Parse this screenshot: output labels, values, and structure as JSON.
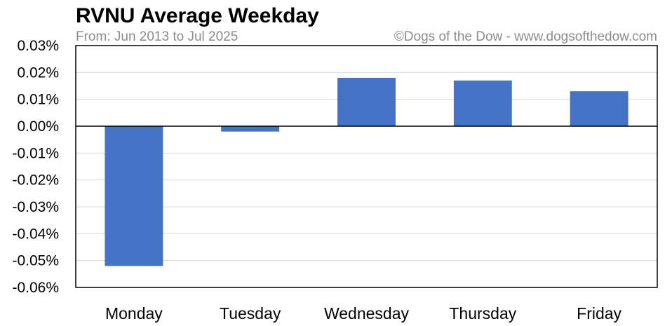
{
  "chart_data": {
    "type": "bar",
    "title": "RVNU Average Weekday",
    "subtitle": "From: Jun 2013 to Jul 2025",
    "credit": "©Dogs of the Dow - www.dogsofthedow.com",
    "categories": [
      "Monday",
      "Tuesday",
      "Wednesday",
      "Thursday",
      "Friday"
    ],
    "values": [
      -0.052,
      -0.002,
      0.018,
      0.017,
      0.013
    ],
    "unit": "%",
    "ylim": [
      -0.06,
      0.03
    ],
    "yticks": [
      "0.03%",
      "0.02%",
      "0.01%",
      "0.00%",
      "-0.01%",
      "-0.02%",
      "-0.03%",
      "-0.04%",
      "-0.05%",
      "-0.06%"
    ],
    "ytick_values": [
      0.03,
      0.02,
      0.01,
      0.0,
      -0.01,
      -0.02,
      -0.03,
      -0.04,
      -0.05,
      -0.06
    ],
    "grid": true,
    "bar_color": "#4472c4",
    "xlabel": "",
    "ylabel": ""
  }
}
